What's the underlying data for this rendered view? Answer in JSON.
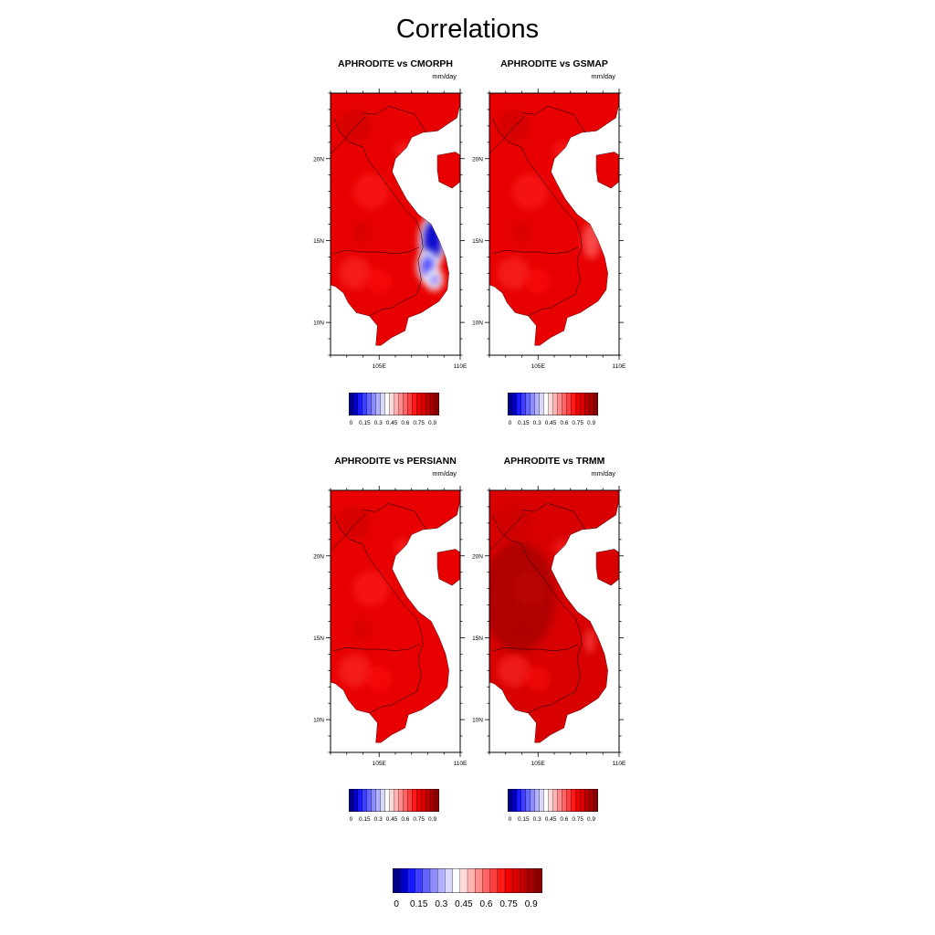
{
  "figure": {
    "title": "Correlations",
    "units": "mm/day"
  },
  "panels": [
    {
      "title": "APHRODITE vs CMORPH",
      "anomaly": "strong"
    },
    {
      "title": "APHRODITE vs GSMAP",
      "anomaly": "weak"
    },
    {
      "title": "APHRODITE vs PERSIANN",
      "anomaly": "none"
    },
    {
      "title": "APHRODITE vs TRMM",
      "anomaly": "dark"
    }
  ],
  "axes": {
    "x_ticks": [
      "105E",
      "110E"
    ],
    "y_ticks": [
      "20N",
      "15N",
      "10N"
    ]
  },
  "colorbar": {
    "labels": [
      "0",
      "0.15",
      "0.3",
      "0.45",
      "0.6",
      "0.75",
      "0.9"
    ],
    "colors": [
      "#00008b",
      "#0000c8",
      "#1a1aff",
      "#3f3fff",
      "#6565ff",
      "#8c8cff",
      "#b2b2ff",
      "#d9d9ff",
      "#ffffff",
      "#ffd9d9",
      "#ffb2b2",
      "#ff8c8c",
      "#ff6565",
      "#ff3f3f",
      "#ff1a1a",
      "#f20000",
      "#d90000",
      "#c00000",
      "#a50000",
      "#8b0000"
    ]
  },
  "chart_data": {
    "type": "heatmap",
    "title": "Correlations",
    "maps": [
      "APHRODITE vs CMORPH",
      "APHRODITE vs GSMAP",
      "APHRODITE vs PERSIANN",
      "APHRODITE vs TRMM"
    ],
    "units": "mm/day",
    "xlim": [
      102,
      110
    ],
    "ylim": [
      8,
      24
    ],
    "x_ticks": [
      "105E",
      "110E"
    ],
    "y_ticks": [
      "20N",
      "15N",
      "10N"
    ],
    "colorbar_range": [
      0,
      1
    ],
    "colorbar_labels": [
      "0",
      "0.15",
      "0.3",
      "0.45",
      "0.6",
      "0.75",
      "0.9"
    ]
  }
}
